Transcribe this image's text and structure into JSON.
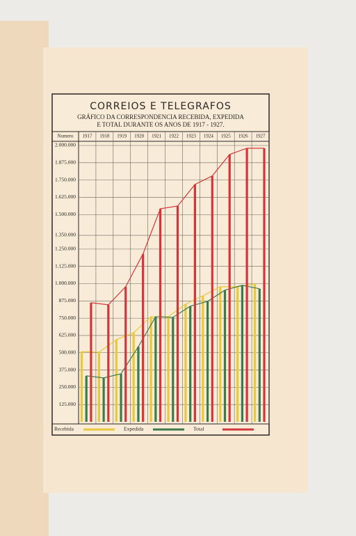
{
  "chart_data": {
    "type": "bar-line",
    "title": "CORREIOS E TELEGRAFOS",
    "subtitle": [
      "GRÁFICO DA CORRESPONDENCIA RECEBIDA, EXPEDIDA",
      "E TOTAL DURANTE OS ANOS DE 1917 - 1927."
    ],
    "y_header": "Numero",
    "categories": [
      "1917",
      "1918",
      "1919",
      "1920",
      "1921",
      "1922",
      "1923",
      "1924",
      "1925",
      "1926",
      "1927"
    ],
    "series": [
      {
        "name": "Recebida",
        "color": "#e8c93a",
        "values": [
          509000,
          504000,
          595000,
          645000,
          761000,
          761000,
          852000,
          912000,
          978000,
          978000,
          998000
        ]
      },
      {
        "name": "Expedida",
        "color": "#3d7a4a",
        "values": [
          333000,
          318000,
          348000,
          544000,
          761000,
          756000,
          837000,
          872000,
          953000,
          988000,
          963000
        ]
      },
      {
        "name": "Total",
        "color": "#d2363a",
        "values": [
          862000,
          847000,
          978000,
          1215000,
          1542000,
          1562000,
          1718000,
          1780000,
          1935000,
          1980000,
          1980000
        ]
      }
    ],
    "ylim": [
      0,
      2000000
    ],
    "yticks": [
      {
        "value": 2000000,
        "label": "2.000.000"
      },
      {
        "value": 1875000,
        "label": "1.875.000"
      },
      {
        "value": 1750000,
        "label": "1.750.000"
      },
      {
        "value": 1625000,
        "label": "1.625.000"
      },
      {
        "value": 1500000,
        "label": "1.500.000"
      },
      {
        "value": 1350000,
        "label": "1.350.000"
      },
      {
        "value": 1250000,
        "label": "1.250.000"
      },
      {
        "value": 1125000,
        "label": "1.125.000"
      },
      {
        "value": 1000000,
        "label": "1.000.000"
      },
      {
        "value": 875000,
        "label": "875.000"
      },
      {
        "value": 750000,
        "label": "750.000"
      },
      {
        "value": 625000,
        "label": "625.000"
      },
      {
        "value": 500000,
        "label": "500.000"
      },
      {
        "value": 375000,
        "label": "375.000"
      },
      {
        "value": 250000,
        "label": "250.000"
      },
      {
        "value": 125000,
        "label": "125.000"
      }
    ],
    "grid": true
  }
}
